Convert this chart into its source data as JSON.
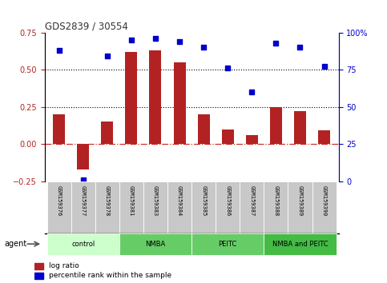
{
  "title": "GDS2839 / 30554",
  "samples": [
    "GSM159376",
    "GSM159377",
    "GSM159378",
    "GSM159381",
    "GSM159383",
    "GSM159384",
    "GSM159385",
    "GSM159386",
    "GSM159387",
    "GSM159388",
    "GSM159389",
    "GSM159390"
  ],
  "log_ratio": [
    0.2,
    -0.17,
    0.15,
    0.62,
    0.63,
    0.55,
    0.2,
    0.1,
    0.06,
    0.25,
    0.22,
    0.09
  ],
  "percentile_rank": [
    88,
    1,
    84,
    95,
    96,
    94,
    90,
    76,
    60,
    93,
    90,
    77
  ],
  "bar_color": "#b22222",
  "dot_color": "#0000cc",
  "ylim_left": [
    -0.25,
    0.75
  ],
  "ylim_right": [
    0,
    100
  ],
  "yticks_left": [
    -0.25,
    0.0,
    0.25,
    0.5,
    0.75
  ],
  "yticks_right": [
    0,
    25,
    50,
    75,
    100
  ],
  "hlines": [
    0.25,
    0.5
  ],
  "zero_line_color": "#cc3333",
  "hline_color": "#000000",
  "agent_label": "agent",
  "legend_bar_label": "log ratio",
  "legend_dot_label": "percentile rank within the sample",
  "bar_width": 0.5,
  "sample_box_color": "#c8c8c8",
  "groups_def": [
    {
      "label": "control",
      "start": 0,
      "end": 2,
      "color": "#ccffcc"
    },
    {
      "label": "NMBA",
      "start": 3,
      "end": 5,
      "color": "#66cc66"
    },
    {
      "label": "PEITC",
      "start": 6,
      "end": 8,
      "color": "#66cc66"
    },
    {
      "label": "NMBA and PEITC",
      "start": 9,
      "end": 11,
      "color": "#44bb44"
    }
  ]
}
